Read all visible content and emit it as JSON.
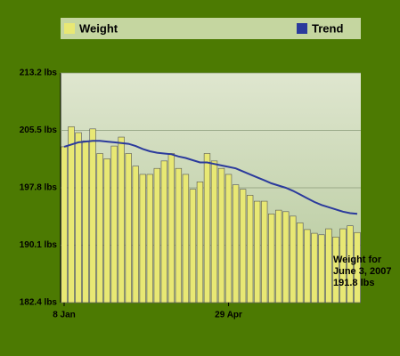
{
  "chart_data": {
    "type": "bar",
    "categories": [
      "8 Jan",
      null,
      null,
      null,
      null,
      null,
      null,
      null,
      null,
      null,
      null,
      null,
      null,
      null,
      null,
      null,
      null,
      null,
      null,
      null,
      null,
      null,
      null,
      "29 Apr",
      null,
      null,
      null,
      null,
      null,
      null,
      null,
      null,
      null,
      null,
      null,
      null,
      null,
      null,
      null,
      null,
      null,
      null
    ],
    "series": [
      {
        "name": "Weight",
        "color": "#e8e874",
        "values": [
          203.3,
          206.0,
          205.2,
          204.1,
          205.7,
          202.4,
          201.7,
          203.4,
          204.6,
          202.4,
          200.7,
          199.6,
          199.6,
          200.4,
          201.4,
          202.4,
          200.4,
          199.6,
          197.6,
          198.6,
          202.4,
          201.4,
          200.4,
          199.6,
          198.2,
          197.6,
          196.8,
          196.0,
          196.0,
          194.3,
          194.8,
          194.6,
          194.0,
          193.1,
          192.2,
          191.7,
          191.5,
          192.3,
          191.2,
          192.3,
          192.7,
          191.8
        ]
      },
      {
        "name": "Trend",
        "color": "#2b3a9c",
        "values": [
          203.3,
          203.6,
          203.9,
          204.0,
          204.1,
          204.1,
          204.0,
          203.9,
          203.8,
          203.7,
          203.4,
          203.0,
          202.7,
          202.5,
          202.4,
          202.3,
          202.0,
          201.8,
          201.5,
          201.2,
          201.2,
          201.0,
          200.8,
          200.6,
          200.4,
          200.0,
          199.6,
          199.2,
          198.8,
          198.4,
          198.1,
          197.8,
          197.4,
          196.9,
          196.4,
          195.9,
          195.5,
          195.2,
          194.9,
          194.6,
          194.4,
          194.3
        ]
      }
    ],
    "ylim": [
      182.4,
      213.2
    ],
    "yticks": [
      {
        "value": 182.4,
        "label": "182.4 lbs"
      },
      {
        "value": 190.1,
        "label": "190.1 lbs"
      },
      {
        "value": 197.8,
        "label": "197.8 lbs"
      },
      {
        "value": 205.5,
        "label": "205.5 lbs"
      },
      {
        "value": 213.2,
        "label": "213.2 lbs"
      }
    ],
    "grid": true,
    "annotation": [
      "Weight for",
      "June 3, 2007",
      "191.8 lbs"
    ]
  }
}
